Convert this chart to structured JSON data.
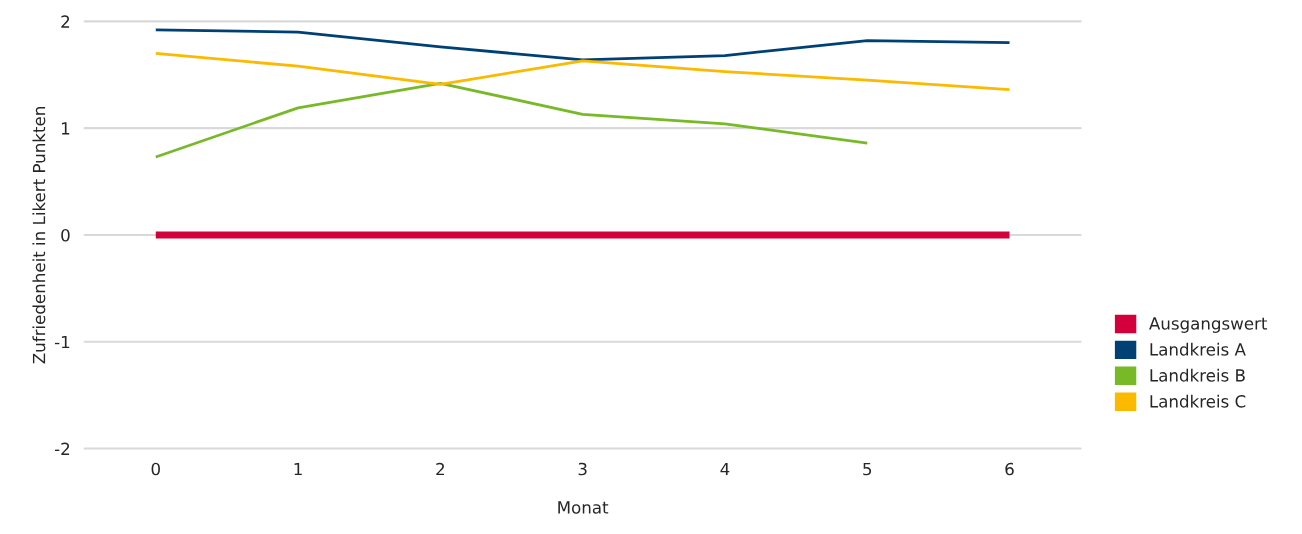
{
  "chart_data": {
    "type": "line",
    "xlabel": "Monat",
    "ylabel": "Zufriedenheit in Likert Punkten",
    "categories": [
      "0",
      "1",
      "2",
      "3",
      "4",
      "5",
      "6"
    ],
    "series": [
      {
        "name": "Ausgangswert",
        "color": "#d4003c",
        "values": [
          0,
          0,
          0,
          0,
          0,
          0,
          0
        ]
      },
      {
        "name": "Landkreis A",
        "color": "#004175",
        "values": [
          1.92,
          1.9,
          1.76,
          1.64,
          1.68,
          1.82,
          1.8
        ]
      },
      {
        "name": "Landkreis B",
        "color": "#78b928",
        "values": [
          0.73,
          1.19,
          1.42,
          1.13,
          1.04,
          0.86,
          null
        ]
      },
      {
        "name": "Landkreis C",
        "color": "#fbb900",
        "values": [
          1.7,
          1.58,
          1.41,
          1.63,
          1.53,
          1.45,
          1.36
        ]
      }
    ],
    "ylim": [
      -2,
      2
    ],
    "yticks": [
      2,
      1,
      0,
      -1,
      -2
    ],
    "grid": "y",
    "legend": "right",
    "marker": "none",
    "line_style": "solid"
  }
}
